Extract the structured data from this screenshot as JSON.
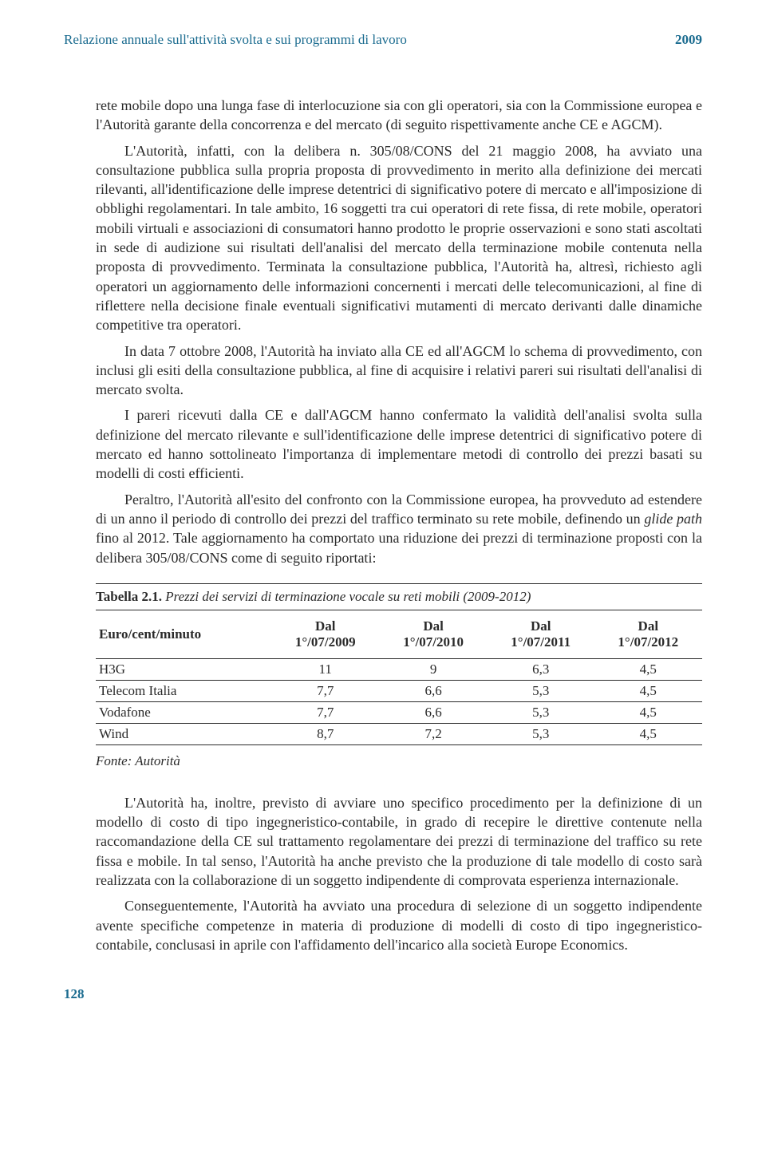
{
  "header": {
    "title": "Relazione annuale sull'attività svolta e sui programmi di lavoro",
    "year": "2009"
  },
  "paragraphs": {
    "p1": "rete mobile dopo una lunga fase di interlocuzione sia con gli operatori, sia con la Commissione europea e l'Autorità garante della concorrenza e del mercato (di seguito rispettivamente anche CE e AGCM).",
    "p2": "L'Autorità, infatti, con la delibera n. 305/08/CONS del 21 maggio 2008, ha avviato una consultazione pubblica sulla propria proposta di provvedimento in merito alla definizione dei mercati rilevanti, all'identificazione delle imprese detentrici di significativo potere di mercato e all'imposizione di obblighi regolamentari. In tale ambito, 16 soggetti tra cui operatori di rete fissa, di rete mobile, operatori mobili virtuali e associazioni di consumatori hanno prodotto le proprie osservazioni e sono stati ascoltati in sede di audizione sui risultati dell'analisi del mercato della terminazione mobile contenuta nella proposta di provvedimento. Terminata la consultazione pubblica, l'Autorità ha, altresì, richiesto agli operatori un aggiornamento delle informazioni concernenti i mercati delle telecomunicazioni, al fine di riflettere nella decisione finale eventuali significativi mutamenti di mercato derivanti dalle dinamiche competitive tra operatori.",
    "p3": "In data 7 ottobre 2008, l'Autorità ha inviato alla CE ed all'AGCM lo schema di provvedimento, con inclusi gli esiti della consultazione pubblica, al fine di acquisire i relativi pareri sui risultati dell'analisi di mercato svolta.",
    "p4": "I pareri ricevuti dalla CE e dall'AGCM hanno confermato la validità dell'analisi svolta sulla definizione del mercato rilevante e sull'identificazione delle imprese detentrici di significativo potere di mercato ed hanno sottolineato l'importanza di implementare metodi di controllo dei prezzi basati su modelli di costi efficienti.",
    "p5_a": "Peraltro, l'Autorità all'esito del confronto con la Commissione europea, ha provveduto ad estendere di un anno il periodo di controllo dei prezzi del traffico terminato su rete mobile, definendo un ",
    "p5_italic": "glide path",
    "p5_b": " fino al 2012. Tale aggiornamento ha comportato una riduzione dei prezzi di terminazione proposti con la delibera 305/08/CONS come di seguito riportati:",
    "p6": "L'Autorità ha, inoltre, previsto di avviare uno specifico procedimento per la definizione di un modello di costo di tipo ingegneristico-contabile, in grado di recepire le direttive contenute nella raccomandazione della CE sul trattamento regolamentare dei prezzi di terminazione del traffico su rete fissa e mobile. In tal senso, l'Autorità ha anche previsto che la produzione di tale modello di costo sarà realizzata con la collaborazione di un soggetto indipendente di comprovata esperienza internazionale.",
    "p7": "Conseguentemente, l'Autorità ha avviato una procedura di selezione di un soggetto indipendente avente specifiche competenze in materia di produzione di modelli di costo di tipo ingegneristico-contabile, conclusasi in aprile con l'affidamento dell'incarico alla società Europe Economics."
  },
  "table": {
    "title_bold": "Tabella 2.1.",
    "title_italic": " Prezzi dei servizi di terminazione vocale su reti mobili (2009-2012)",
    "header_row": "Euro/cent/minuto",
    "col1_a": "Dal",
    "col1_b": "1°/07/2009",
    "col2_a": "Dal",
    "col2_b": "1°/07/2010",
    "col3_a": "Dal",
    "col3_b": "1°/07/2011",
    "col4_a": "Dal",
    "col4_b": "1°/07/2012",
    "rows": [
      {
        "name": "H3G",
        "v1": "11",
        "v2": "9",
        "v3": "6,3",
        "v4": "4,5"
      },
      {
        "name": "Telecom Italia",
        "v1": "7,7",
        "v2": "6,6",
        "v3": "5,3",
        "v4": "4,5"
      },
      {
        "name": "Vodafone",
        "v1": "7,7",
        "v2": "6,6",
        "v3": "5,3",
        "v4": "4,5"
      },
      {
        "name": "Wind",
        "v1": "8,7",
        "v2": "7,2",
        "v3": "5,3",
        "v4": "4,5"
      }
    ],
    "source": "Fonte: Autorità"
  },
  "colors": {
    "header_text": "#1a6b8f",
    "body_text": "#2a2a2a",
    "background": "#ffffff"
  },
  "page_number": "128"
}
